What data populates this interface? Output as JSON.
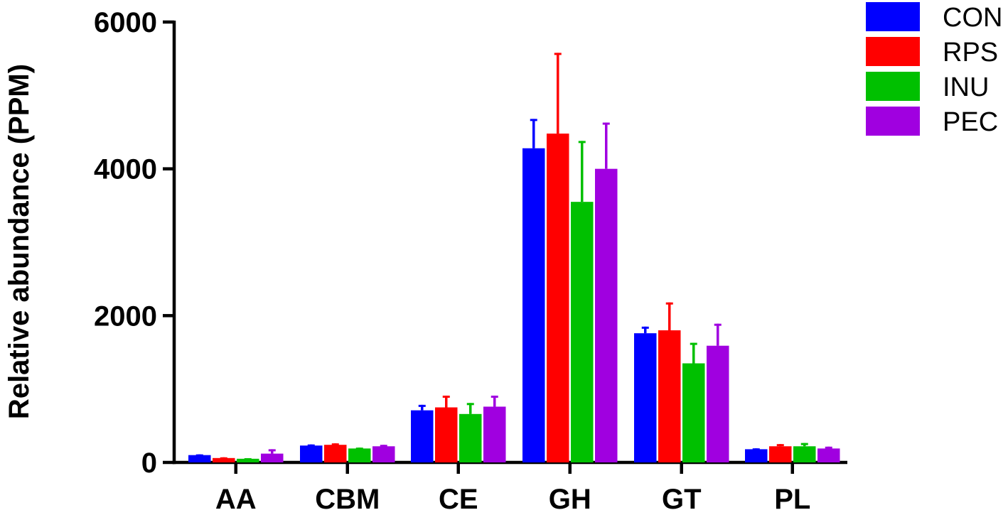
{
  "chart_data": {
    "type": "bar",
    "title": "",
    "xlabel": "",
    "ylabel": "Relative abundance (PPM)",
    "ylim": [
      0,
      6000
    ],
    "yticks": [
      0,
      2000,
      4000,
      6000
    ],
    "ytick_labels": [
      "0",
      "2000",
      "4000",
      "6000"
    ],
    "categories": [
      "AA",
      "CBM",
      "CE",
      "GH",
      "GT",
      "PL"
    ],
    "legend_position": "top-right",
    "grid": false,
    "series": [
      {
        "name": "CON",
        "color": "#0000ff",
        "values": [
          100,
          230,
          710,
          4280,
          1760,
          180
        ],
        "errors": [
          10,
          15,
          75,
          400,
          90,
          12
        ]
      },
      {
        "name": "RPS",
        "color": "#ff0000",
        "values": [
          60,
          240,
          750,
          4480,
          1800,
          220
        ],
        "errors": [
          10,
          20,
          160,
          1100,
          380,
          30
        ]
      },
      {
        "name": "INU",
        "color": "#00c000",
        "values": [
          50,
          190,
          660,
          3550,
          1350,
          220
        ],
        "errors": [
          8,
          12,
          150,
          830,
          280,
          45
        ]
      },
      {
        "name": "PEC",
        "color": "#a000e0",
        "values": [
          120,
          220,
          760,
          4000,
          1590,
          190
        ],
        "errors": [
          60,
          20,
          150,
          630,
          300,
          25
        ]
      }
    ]
  }
}
